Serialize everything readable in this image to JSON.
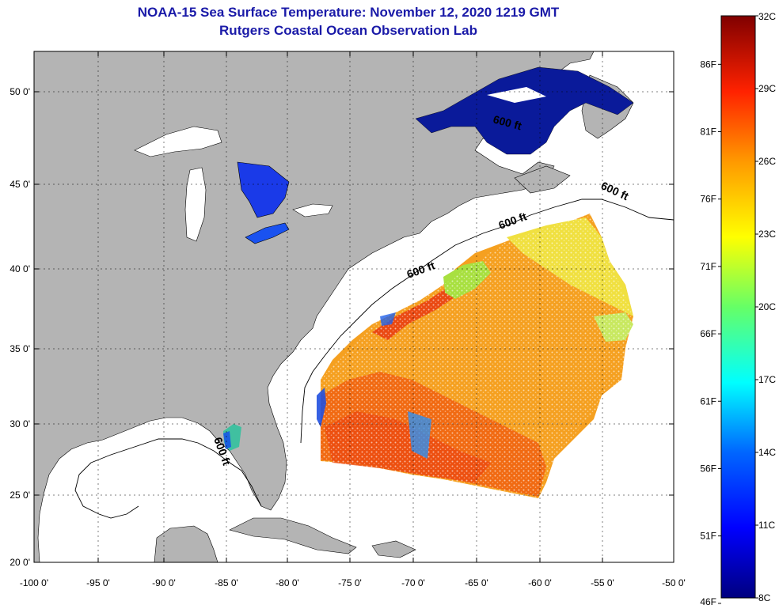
{
  "title_line1": "NOAA-15 Sea Surface Temperature:  November 12, 2020 1219 GMT",
  "title_line2": "Rutgers Coastal Ocean Observation Lab",
  "lat_labels": [
    "50 0'",
    "45 0'",
    "40 0'",
    "35 0'",
    "30 0'",
    "25 0'",
    "20 0'"
  ],
  "lon_labels": [
    "-100 0'",
    "-95 0'",
    "-90 0'",
    "-85 0'",
    "-80 0'",
    "-75 0'",
    "-70 0'",
    "-65 0'",
    "-60 0'",
    "-55 0'",
    "-50 0'"
  ],
  "contour_label": "600 ft",
  "colorbar": {
    "min_c": 8,
    "max_c": 32,
    "fahrenheit_labels": [
      "86F",
      "81F",
      "76F",
      "71F",
      "66F",
      "61F",
      "56F",
      "51F",
      "46F"
    ],
    "celsius_labels": [
      "32C",
      "29C",
      "26C",
      "23C",
      "20C",
      "17C",
      "14C",
      "11C",
      "8C"
    ]
  },
  "colors": {
    "land": "#b4b4b4",
    "water_nodata": "#ffffff",
    "title": "#1a1aa8",
    "grid": "#000000"
  }
}
